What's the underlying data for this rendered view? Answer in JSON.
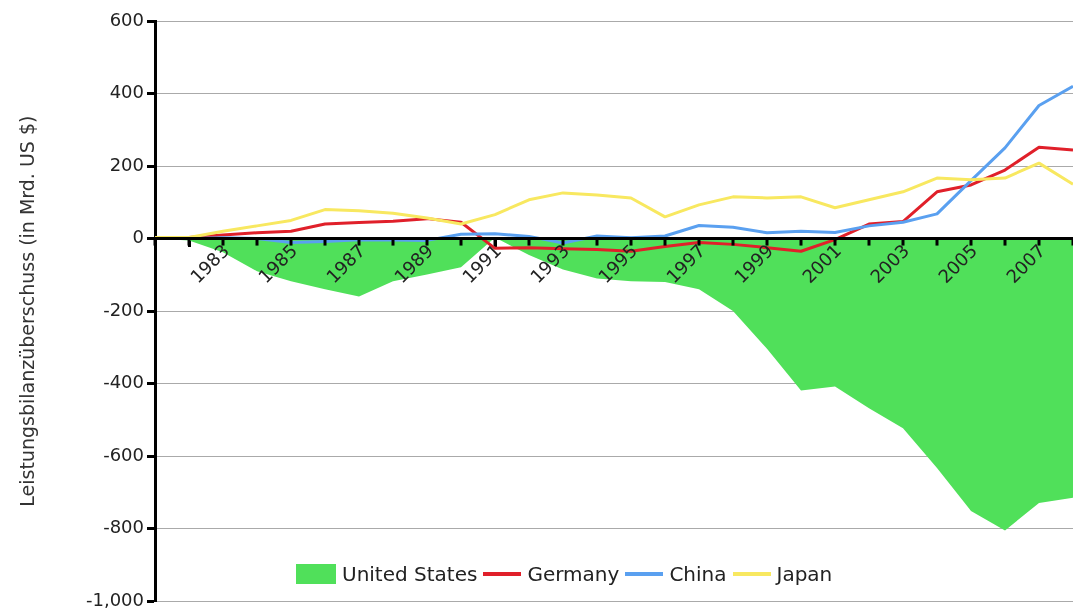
{
  "chart_data": {
    "type": "line",
    "ylabel": "Leistungsbilanzüberschuss (in Mrd. US $)",
    "categories": [
      null,
      null,
      "1983",
      null,
      "1985",
      null,
      "1987",
      null,
      "1989",
      null,
      "1991",
      null,
      "1993",
      null,
      "1995",
      null,
      "1997",
      null,
      "1999",
      null,
      "2001",
      null,
      "2003",
      null,
      "2005",
      null,
      "2007",
      null
    ],
    "series": [
      {
        "name": "United States",
        "type": "area",
        "color": "#50e05a",
        "values": [
          0,
          -5,
          -38,
          -90,
          -118,
          -140,
          -160,
          -118,
          -99,
          -79,
          3,
          -45,
          -85,
          -110,
          -118,
          -120,
          -140,
          -200,
          -304,
          -419,
          -408,
          -468,
          -523,
          -633,
          -751,
          -805,
          -729,
          -715
        ]
      },
      {
        "name": "Germany",
        "color": "#e0202a",
        "values": [
          0,
          3,
          10,
          16,
          20,
          40,
          44,
          48,
          55,
          45,
          -27,
          -25,
          -28,
          -30,
          -35,
          -22,
          -11,
          -16,
          -25,
          -35,
          -3,
          40,
          47,
          129,
          148,
          189,
          252,
          244
        ]
      },
      {
        "name": "China",
        "color": "#5aa0f0",
        "values": [
          0,
          0,
          2,
          0,
          -11,
          -8,
          -3,
          -4,
          -5,
          12,
          13,
          6,
          -12,
          7,
          2,
          7,
          36,
          31,
          16,
          20,
          17,
          35,
          45,
          68,
          160,
          250,
          367,
          420
        ]
      },
      {
        "name": "Japan",
        "color": "#f8e860",
        "values": [
          3,
          3,
          20,
          35,
          50,
          80,
          77,
          70,
          57,
          40,
          66,
          107,
          126,
          120,
          112,
          60,
          93,
          115,
          112,
          115,
          85,
          107,
          129,
          167,
          162,
          167,
          208,
          150
        ]
      }
    ],
    "ylim": [
      -1000,
      600
    ],
    "yticks": [
      {
        "value": -1000,
        "label": "-1,000"
      },
      -800,
      -600,
      -400,
      -200,
      0,
      200,
      400,
      600
    ],
    "grid": "y",
    "legend": "bottom",
    "marker": "none"
  }
}
